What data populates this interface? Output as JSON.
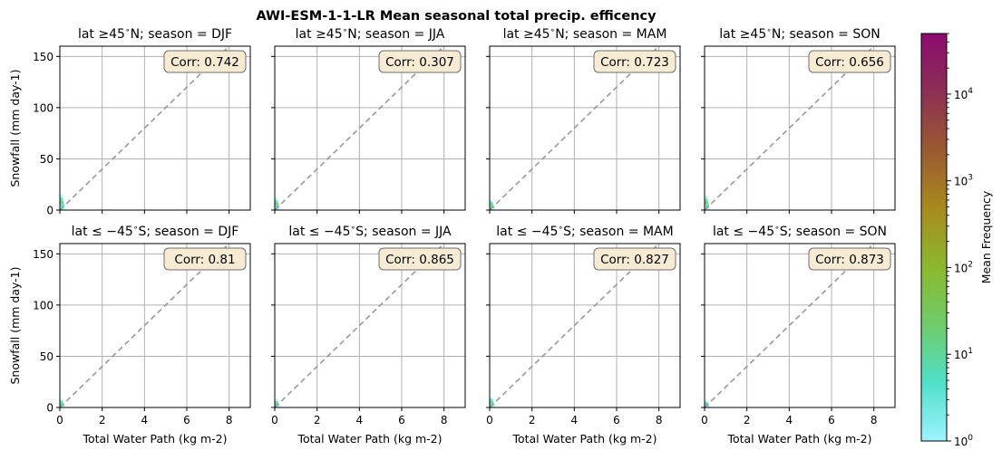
{
  "figure": {
    "title": "AWI-ESM-1-1-LR Mean seasonal total precip. efficency",
    "colorbar": {
      "label": "Mean Frequency",
      "scale": "log",
      "range": [
        1,
        50000
      ],
      "ticks": [
        {
          "value": 1,
          "base": "10",
          "exp": "0"
        },
        {
          "value": 10,
          "base": "10",
          "exp": "1"
        },
        {
          "value": 100,
          "base": "10",
          "exp": "2"
        },
        {
          "value": 1000,
          "base": "10",
          "exp": "3"
        },
        {
          "value": 10000,
          "base": "10",
          "exp": "4"
        }
      ],
      "colors": [
        "#9ef3ff",
        "#4fe0c8",
        "#6fcc6a",
        "#8cb82c",
        "#a88a1e",
        "#9a5a30",
        "#8c2f55",
        "#8c0b6e"
      ]
    },
    "ref_line_color": "#999999",
    "hist_color": "#4fe0c8"
  },
  "chart_data": [
    {
      "type": "heatmap",
      "title": "lat$\\geq 45^\\circ$N; season = DJF",
      "title_parts": [
        "lat",
        "≥",
        "45",
        "∘",
        "N; season = DJF"
      ],
      "corr": "Corr: 0.742",
      "xlabel": "",
      "ylabel": "Snowfall (mm day-1)",
      "xlim": [
        0,
        9
      ],
      "ylim": [
        0,
        160
      ],
      "xticks": [
        0,
        2,
        4,
        6,
        8
      ],
      "yticks": [
        0,
        50,
        100,
        150
      ],
      "show_xticklabels": false,
      "show_yticklabels": true,
      "grid": true,
      "ref_line": [
        [
          0,
          0
        ],
        [
          9,
          180
        ]
      ],
      "max_snowfall": 15
    },
    {
      "type": "heatmap",
      "title_parts": [
        "lat",
        "≥",
        "45",
        "∘",
        "N; season = JJA"
      ],
      "corr": "Corr: 0.307",
      "xlabel": "",
      "ylabel": "",
      "xlim": [
        0,
        9
      ],
      "ylim": [
        0,
        160
      ],
      "xticks": [
        0,
        2,
        4,
        6,
        8
      ],
      "yticks": [
        0,
        50,
        100,
        150
      ],
      "show_xticklabels": false,
      "show_yticklabels": false,
      "grid": true,
      "ref_line": [
        [
          0,
          0
        ],
        [
          9,
          180
        ]
      ],
      "max_snowfall": 12
    },
    {
      "type": "heatmap",
      "title_parts": [
        "lat",
        "≥",
        "45",
        "∘",
        "N; season = MAM"
      ],
      "corr": "Corr: 0.723",
      "xlabel": "",
      "ylabel": "",
      "xlim": [
        0,
        9
      ],
      "ylim": [
        0,
        160
      ],
      "xticks": [
        0,
        2,
        4,
        6,
        8
      ],
      "yticks": [
        0,
        50,
        100,
        150
      ],
      "show_xticklabels": false,
      "show_yticklabels": false,
      "grid": true,
      "ref_line": [
        [
          0,
          0
        ],
        [
          9,
          180
        ]
      ],
      "max_snowfall": 10
    },
    {
      "type": "heatmap",
      "title_parts": [
        "lat",
        "≥",
        "45",
        "∘",
        "N; season = SON"
      ],
      "corr": "Corr: 0.656",
      "xlabel": "",
      "ylabel": "",
      "xlim": [
        0,
        9
      ],
      "ylim": [
        0,
        160
      ],
      "xticks": [
        0,
        2,
        4,
        6,
        8
      ],
      "yticks": [
        0,
        50,
        100,
        150
      ],
      "show_xticklabels": false,
      "show_yticklabels": false,
      "grid": true,
      "ref_line": [
        [
          0,
          0
        ],
        [
          9,
          180
        ]
      ],
      "max_snowfall": 14
    },
    {
      "type": "heatmap",
      "title_parts": [
        "lat",
        "≤",
        " −45",
        "∘",
        "S; season = DJF"
      ],
      "corr": "Corr: 0.81",
      "xlabel": "Total Water Path (kg m-2)",
      "ylabel": "Snowfall (mm day-1)",
      "xlim": [
        0,
        9
      ],
      "ylim": [
        0,
        160
      ],
      "xticks": [
        0,
        2,
        4,
        6,
        8
      ],
      "yticks": [
        0,
        50,
        100,
        150
      ],
      "show_xticklabels": true,
      "show_yticklabels": true,
      "grid": true,
      "ref_line": [
        [
          0,
          0
        ],
        [
          9,
          180
        ]
      ],
      "max_snowfall": 8
    },
    {
      "type": "heatmap",
      "title_parts": [
        "lat",
        "≤",
        " −45",
        "∘",
        "S; season = JJA"
      ],
      "corr": "Corr: 0.865",
      "xlabel": "Total Water Path (kg m-2)",
      "ylabel": "",
      "xlim": [
        0,
        9
      ],
      "ylim": [
        0,
        160
      ],
      "xticks": [
        0,
        2,
        4,
        6,
        8
      ],
      "yticks": [
        0,
        50,
        100,
        150
      ],
      "show_xticklabels": true,
      "show_yticklabels": false,
      "grid": true,
      "ref_line": [
        [
          0,
          0
        ],
        [
          9,
          180
        ]
      ],
      "max_snowfall": 8
    },
    {
      "type": "heatmap",
      "title_parts": [
        "lat",
        "≤",
        " −45",
        "∘",
        "S; season = MAM"
      ],
      "corr": "Corr: 0.827",
      "xlabel": "Total Water Path (kg m-2)",
      "ylabel": "",
      "xlim": [
        0,
        9
      ],
      "ylim": [
        0,
        160
      ],
      "xticks": [
        0,
        2,
        4,
        6,
        8
      ],
      "yticks": [
        0,
        50,
        100,
        150
      ],
      "show_xticklabels": true,
      "show_yticklabels": false,
      "grid": true,
      "ref_line": [
        [
          0,
          0
        ],
        [
          9,
          180
        ]
      ],
      "max_snowfall": 10
    },
    {
      "type": "heatmap",
      "title_parts": [
        "lat",
        "≤",
        " −45",
        "∘",
        "S; season = SON"
      ],
      "corr": "Corr: 0.873",
      "xlabel": "Total Water Path (kg m-2)",
      "ylabel": "",
      "xlim": [
        0,
        9
      ],
      "ylim": [
        0,
        160
      ],
      "xticks": [
        0,
        2,
        4,
        6,
        8
      ],
      "yticks": [
        0,
        50,
        100,
        150
      ],
      "show_xticklabels": true,
      "show_yticklabels": false,
      "grid": true,
      "ref_line": [
        [
          0,
          0
        ],
        [
          9,
          180
        ]
      ],
      "max_snowfall": 7
    }
  ]
}
